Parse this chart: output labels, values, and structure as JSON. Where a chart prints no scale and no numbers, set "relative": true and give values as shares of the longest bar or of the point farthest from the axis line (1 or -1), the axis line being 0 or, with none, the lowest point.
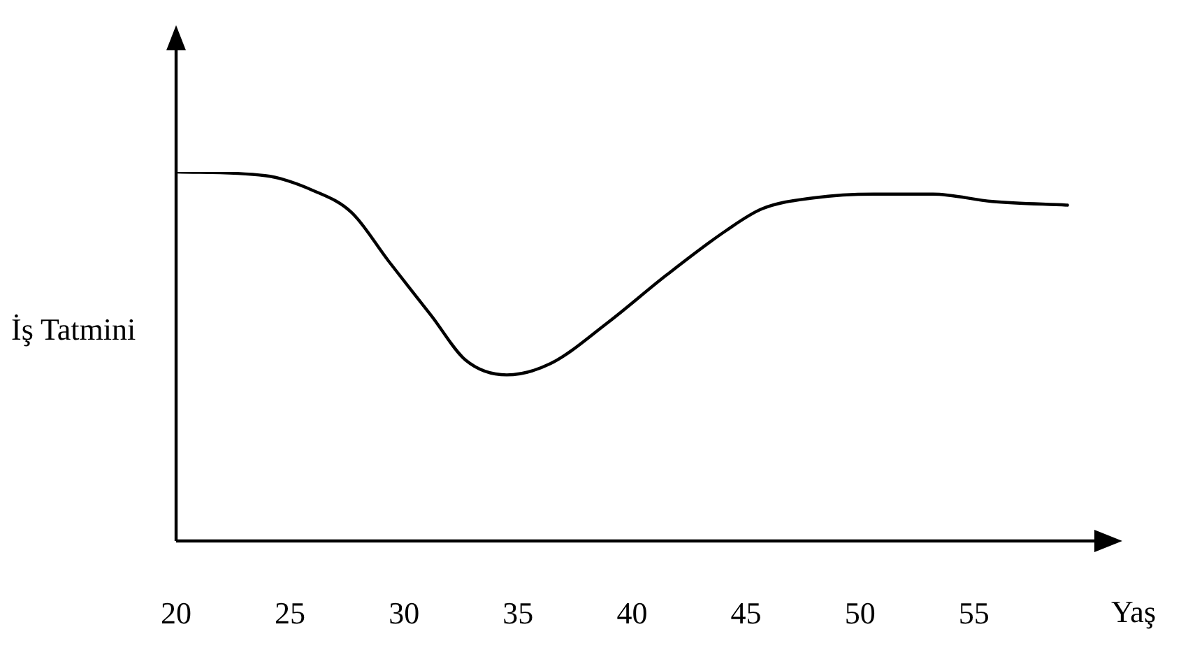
{
  "chart_data": {
    "type": "line",
    "xlabel": "Yaş",
    "ylabel": "İş Tatmini",
    "relative": true,
    "xlim": [
      20,
      60.4
    ],
    "xticks": [
      20,
      25,
      30,
      35,
      40,
      45,
      50,
      55
    ],
    "grid": false,
    "legend": false,
    "marker": "none",
    "line_style": "solid",
    "series": [
      {
        "color": "#000000",
        "x": [
          20,
          23.9,
          26.0,
          27.7,
          29.3,
          31.2,
          32.7,
          34.5,
          36.4,
          38.9,
          41.5,
          44.1,
          45.7,
          48.0,
          50.6,
          53.2,
          55.8,
          59.1
        ],
        "values": [
          1,
          0.99,
          0.95,
          0.89,
          0.76,
          0.61,
          0.49,
          0.45,
          0.48,
          0.59,
          0.72,
          0.84,
          0.9,
          0.93,
          0.94,
          0.94,
          0.92,
          0.91
        ]
      }
    ]
  }
}
